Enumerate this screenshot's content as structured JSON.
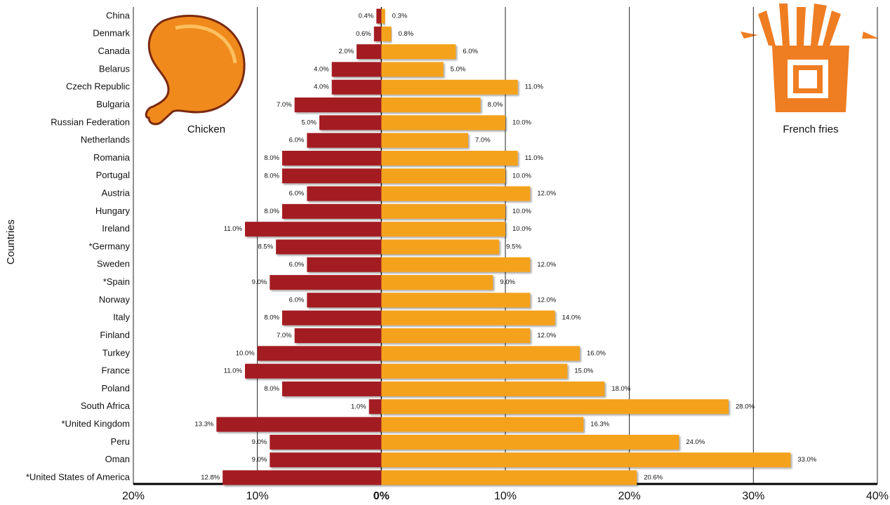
{
  "chart_data": {
    "type": "butterfly-bar",
    "y_label": "Countries",
    "categories": [
      "China",
      "Denmark",
      "Canada",
      "Belarus",
      "Czech Republic",
      "Bulgaria",
      "Russian Federation",
      "Netherlands",
      "Romania",
      "Portugal",
      "Austria",
      "Hungary",
      "Ireland",
      "*Germany",
      "Sweden",
      "*Spain",
      "Norway",
      "Italy",
      "Finland",
      "Turkey",
      "France",
      "Poland",
      "South Africa",
      "*United Kingdom",
      "Peru",
      "Oman",
      "*United States of America"
    ],
    "series": [
      {
        "name": "Chicken",
        "color": "#a31f24",
        "values": [
          0.4,
          0.6,
          2.0,
          4.0,
          4.0,
          7.0,
          5.0,
          6.0,
          8.0,
          8.0,
          6.0,
          8.0,
          11.0,
          8.5,
          6.0,
          9.0,
          6.0,
          8.0,
          7.0,
          10.0,
          11.0,
          8.0,
          1.0,
          13.3,
          9.0,
          9.0,
          12.8
        ],
        "value_labels": [
          "0.4%",
          "0.6%",
          "2.0%",
          "4.0%",
          "4.0%",
          "7.0%",
          "5.0%",
          "6.0%",
          "8.0%",
          "8.0%",
          "6.0%",
          "8.0%",
          "11.0%",
          "8.5%",
          "6.0%",
          "9.0%",
          "6.0%",
          "8.0%",
          "7.0%",
          "10.0%",
          "11.0%",
          "8.0%",
          "1.0%",
          "13.3%",
          "9.0%",
          "9.0%",
          "12.8%"
        ]
      },
      {
        "name": "French fries",
        "color": "#f4a21c",
        "values": [
          0.3,
          0.8,
          6.0,
          5.0,
          11.0,
          8.0,
          10.0,
          7.0,
          11.0,
          10.0,
          12.0,
          10.0,
          10.0,
          9.5,
          12.0,
          9.0,
          12.0,
          14.0,
          12.0,
          16.0,
          15.0,
          18.0,
          28.0,
          16.3,
          24.0,
          33.0,
          20.6
        ],
        "value_labels": [
          "0.3%",
          "0.8%",
          "6.0%",
          "5.0%",
          "11.0%",
          "8.0%",
          "10.0%",
          "7.0%",
          "11.0%",
          "10.0%",
          "12.0%",
          "10.0%",
          "10.0%",
          "9.5%",
          "12.0%",
          "9.0%",
          "12.0%",
          "14.0%",
          "12.0%",
          "16.0%",
          "15.0%",
          "18.0%",
          "28.0%",
          "16.3%",
          "24.0%",
          "33.0%",
          "20.6%"
        ]
      }
    ],
    "xlim": [
      -20,
      40
    ],
    "xticks": [
      {
        "value": -20,
        "label": "20%"
      },
      {
        "value": -10,
        "label": "10%"
      },
      {
        "value": 0,
        "label": "0%"
      },
      {
        "value": 10,
        "label": "10%"
      },
      {
        "value": 20,
        "label": "20%"
      },
      {
        "value": 30,
        "label": "30%"
      },
      {
        "value": 40,
        "label": "40%"
      }
    ],
    "grid": true
  }
}
